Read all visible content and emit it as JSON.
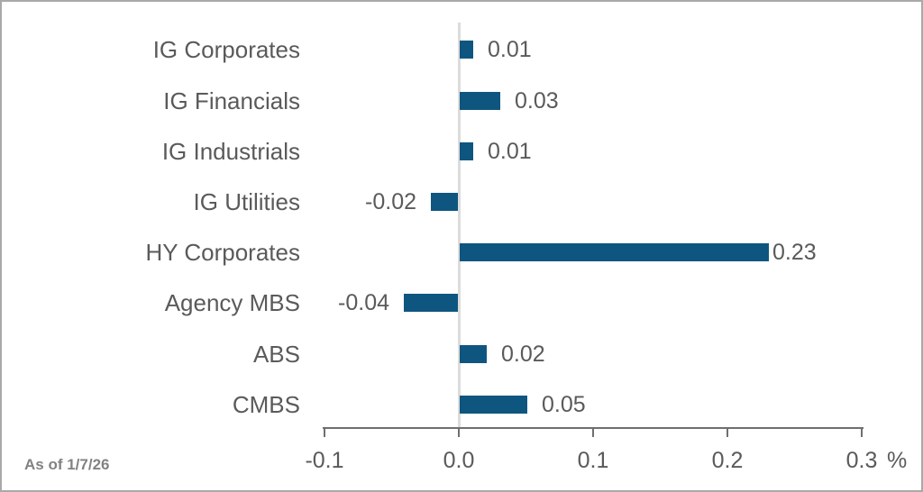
{
  "chart_data": {
    "type": "bar",
    "orientation": "horizontal",
    "title": "",
    "categories": [
      "IG Corporates",
      "IG Financials",
      "IG Industrials",
      "IG Utilities",
      "HY Corporates",
      "Agency MBS",
      "ABS",
      "CMBS"
    ],
    "values": [
      0.01,
      0.03,
      0.01,
      -0.02,
      0.23,
      -0.04,
      0.02,
      0.05
    ],
    "value_labels": [
      "0.01",
      "0.03",
      "0.01",
      "-0.02",
      "0.23",
      "-0.04",
      "0.02",
      "0.05"
    ],
    "x_ticks": [
      -0.1,
      0.0,
      0.1,
      0.2,
      0.3
    ],
    "x_tick_labels": [
      "-0.1",
      "0.0",
      "0.1",
      "0.2",
      "0.3"
    ],
    "x_unit": "%",
    "xlim": [
      -0.1,
      0.3
    ],
    "grid": false,
    "legend": null,
    "footnote": "As of 1/7/26",
    "colors": {
      "bar": "#0e567f",
      "text": "#5a5a5a",
      "axis": "#6f6f6f",
      "zero_line": "#dcdcdc",
      "frame_border": "#a9a9a9",
      "footnote_text": "#828282"
    }
  }
}
